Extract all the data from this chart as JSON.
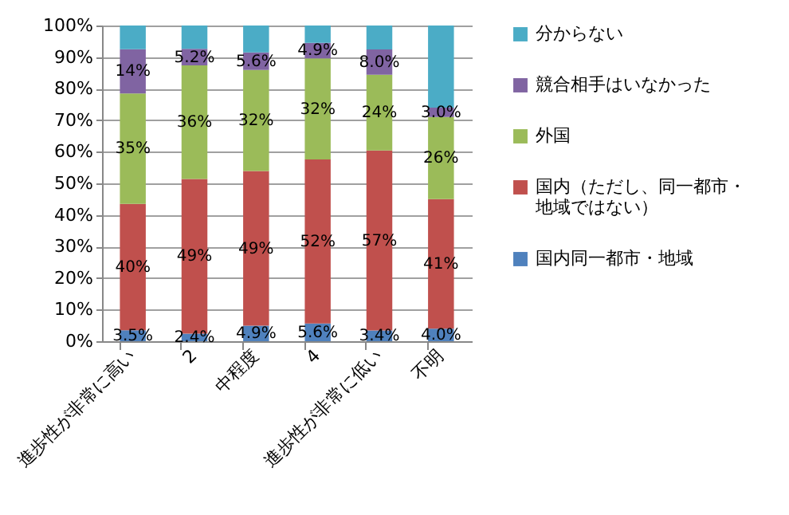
{
  "chart_data": {
    "type": "bar",
    "stacked": true,
    "categories": [
      "進歩性が非常に高い",
      "2",
      "中程度",
      "4",
      "進歩性が非常に低い",
      "不明"
    ],
    "series": [
      {
        "name": "国内同一都市・地域",
        "color": "#4f81bd",
        "values": [
          3.5,
          2.4,
          4.9,
          5.6,
          3.4,
          4.0
        ],
        "value_labels": [
          "3.5%",
          "2.4%",
          "4.9%",
          "5.6%",
          "3.4%",
          "4.0%"
        ]
      },
      {
        "name": "国内（ただし、同一都市・地域ではない）",
        "color": "#c0504d",
        "values": [
          40,
          49,
          49,
          52,
          57,
          41
        ],
        "value_labels": [
          "40%",
          "49%",
          "49%",
          "52%",
          "57%",
          "41%"
        ]
      },
      {
        "name": "外国",
        "color": "#9bbb59",
        "values": [
          35,
          36,
          32,
          32,
          24,
          26
        ],
        "value_labels": [
          "35%",
          "36%",
          "32%",
          "32%",
          "24%",
          "26%"
        ]
      },
      {
        "name": "競合相手はいなかった",
        "color": "#8064a2",
        "values": [
          14,
          5.2,
          5.6,
          4.9,
          8.0,
          3.0
        ],
        "value_labels": [
          "14%",
          "5.2%",
          "5.6%",
          "4.9%",
          "8.0%",
          "3.0%"
        ]
      },
      {
        "name": "分からない",
        "color": "#4bacc6",
        "values": [
          7.5,
          7.4,
          8.5,
          5.5,
          7.6,
          26
        ]
      }
    ],
    "ylim": [
      0,
      100
    ],
    "yticks": [
      {
        "value": 0,
        "label": "0%"
      },
      {
        "value": 10,
        "label": "10%"
      },
      {
        "value": 20,
        "label": "20%"
      },
      {
        "value": 30,
        "label": "30%"
      },
      {
        "value": 40,
        "label": "40%"
      },
      {
        "value": 50,
        "label": "50%"
      },
      {
        "value": 60,
        "label": "60%"
      },
      {
        "value": 70,
        "label": "70%"
      },
      {
        "value": 80,
        "label": "80%"
      },
      {
        "value": 90,
        "label": "90%"
      },
      {
        "value": 100,
        "label": "100%"
      }
    ],
    "grid": "y",
    "legend": "right"
  }
}
